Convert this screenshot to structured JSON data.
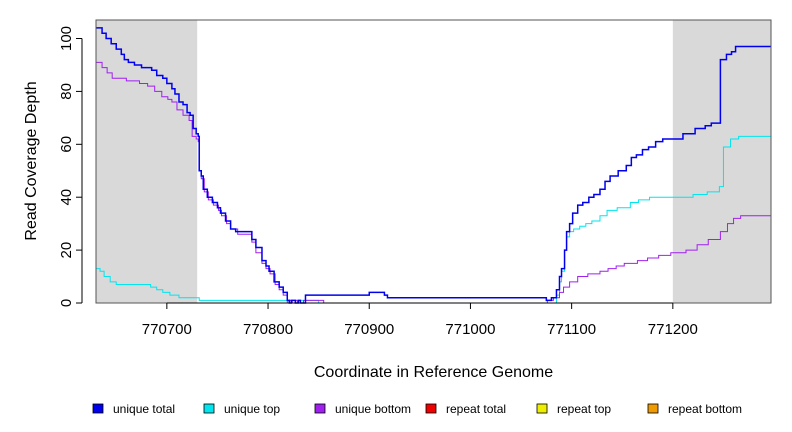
{
  "chart_data": {
    "type": "line",
    "style": "step",
    "title": "",
    "xlabel": "Coordinate in Reference Genome",
    "ylabel": "Read Coverage Depth",
    "xlim": [
      770630,
      771297
    ],
    "ylim": [
      0,
      107
    ],
    "x_ticks": [
      770700,
      770800,
      770900,
      771000,
      771100,
      771200
    ],
    "y_ticks": [
      0,
      20,
      40,
      60,
      80,
      100
    ],
    "grid": false,
    "legend_position": "bottom",
    "shaded_regions": [
      {
        "x0": 770630,
        "x1": 770730,
        "color": "#d9d9d9"
      },
      {
        "x0": 771200,
        "x1": 771297,
        "color": "#d9d9d9"
      }
    ],
    "series": [
      {
        "name": "unique total",
        "color": "#0000ee",
        "points": [
          [
            770630,
            104
          ],
          [
            770636,
            102
          ],
          [
            770640,
            100
          ],
          [
            770645,
            98
          ],
          [
            770650,
            96
          ],
          [
            770655,
            94
          ],
          [
            770658,
            92
          ],
          [
            770662,
            91
          ],
          [
            770668,
            90
          ],
          [
            770675,
            89
          ],
          [
            770685,
            88
          ],
          [
            770690,
            86
          ],
          [
            770696,
            85
          ],
          [
            770700,
            83
          ],
          [
            770705,
            81
          ],
          [
            770708,
            79
          ],
          [
            770712,
            76
          ],
          [
            770716,
            75
          ],
          [
            770720,
            72
          ],
          [
            770723,
            71
          ],
          [
            770726,
            66
          ],
          [
            770729,
            64
          ],
          [
            770731,
            63
          ],
          [
            770732,
            50
          ],
          [
            770734,
            48
          ],
          [
            770736,
            43
          ],
          [
            770740,
            40
          ],
          [
            770745,
            38
          ],
          [
            770750,
            36
          ],
          [
            770753,
            34
          ],
          [
            770758,
            31
          ],
          [
            770763,
            28
          ],
          [
            770768,
            27
          ],
          [
            770780,
            27
          ],
          [
            770784,
            24
          ],
          [
            770788,
            21
          ],
          [
            770794,
            16
          ],
          [
            770798,
            14
          ],
          [
            770801,
            12
          ],
          [
            770806,
            8
          ],
          [
            770811,
            6
          ],
          [
            770815,
            4
          ],
          [
            770819,
            1
          ],
          [
            770821,
            0
          ],
          [
            770823,
            1
          ],
          [
            770827,
            0
          ],
          [
            770830,
            1
          ],
          [
            770832,
            0
          ],
          [
            770837,
            3
          ],
          [
            770900,
            4
          ],
          [
            770915,
            3
          ],
          [
            770918,
            2
          ],
          [
            771075,
            1
          ],
          [
            771080,
            2
          ],
          [
            771085,
            5
          ],
          [
            771088,
            10
          ],
          [
            771090,
            13
          ],
          [
            771093,
            20
          ],
          [
            771095,
            27
          ],
          [
            771098,
            30
          ],
          [
            771101,
            34
          ],
          [
            771106,
            37
          ],
          [
            771111,
            38
          ],
          [
            771117,
            40
          ],
          [
            771122,
            41
          ],
          [
            771128,
            43
          ],
          [
            771133,
            46
          ],
          [
            771138,
            48
          ],
          [
            771146,
            50
          ],
          [
            771154,
            52
          ],
          [
            771159,
            55
          ],
          [
            771164,
            56
          ],
          [
            771170,
            58
          ],
          [
            771176,
            59
          ],
          [
            771183,
            61
          ],
          [
            771190,
            62
          ],
          [
            771200,
            62
          ],
          [
            771210,
            64
          ],
          [
            771222,
            66
          ],
          [
            771232,
            67
          ],
          [
            771238,
            68
          ],
          [
            771247,
            92
          ],
          [
            771253,
            94
          ],
          [
            771258,
            95
          ],
          [
            771262,
            97
          ],
          [
            771297,
            97
          ]
        ]
      },
      {
        "name": "unique top",
        "color": "#00e5ee",
        "points": [
          [
            770630,
            13
          ],
          [
            770634,
            12
          ],
          [
            770638,
            10
          ],
          [
            770644,
            8
          ],
          [
            770650,
            7
          ],
          [
            770680,
            7
          ],
          [
            770684,
            6
          ],
          [
            770690,
            5
          ],
          [
            770696,
            4
          ],
          [
            770703,
            3
          ],
          [
            770712,
            2
          ],
          [
            770730,
            2
          ],
          [
            770732,
            1
          ],
          [
            770840,
            1
          ],
          [
            770850,
            0
          ],
          [
            771080,
            0
          ],
          [
            771085,
            3
          ],
          [
            771088,
            8
          ],
          [
            771090,
            12
          ],
          [
            771093,
            20
          ],
          [
            771095,
            25
          ],
          [
            771098,
            27
          ],
          [
            771102,
            28
          ],
          [
            771108,
            29
          ],
          [
            771114,
            30
          ],
          [
            771120,
            31
          ],
          [
            771128,
            33
          ],
          [
            771135,
            35
          ],
          [
            771145,
            36
          ],
          [
            771158,
            38
          ],
          [
            771166,
            39
          ],
          [
            771177,
            40
          ],
          [
            771200,
            40
          ],
          [
            771220,
            41
          ],
          [
            771234,
            42
          ],
          [
            771246,
            44
          ],
          [
            771250,
            59
          ],
          [
            771257,
            62
          ],
          [
            771265,
            63
          ],
          [
            771297,
            63
          ]
        ]
      },
      {
        "name": "unique bottom",
        "color": "#a020f0",
        "points": [
          [
            770630,
            91
          ],
          [
            770636,
            89
          ],
          [
            770641,
            87
          ],
          [
            770646,
            85
          ],
          [
            770660,
            84
          ],
          [
            770673,
            83
          ],
          [
            770681,
            82
          ],
          [
            770688,
            80
          ],
          [
            770695,
            78
          ],
          [
            770701,
            77
          ],
          [
            770705,
            76
          ],
          [
            770710,
            73
          ],
          [
            770716,
            71
          ],
          [
            770722,
            69
          ],
          [
            770725,
            63
          ],
          [
            770729,
            62
          ],
          [
            770731,
            61
          ],
          [
            770732,
            50
          ],
          [
            770734,
            47
          ],
          [
            770737,
            42
          ],
          [
            770741,
            39
          ],
          [
            770746,
            37
          ],
          [
            770751,
            35
          ],
          [
            770754,
            33
          ],
          [
            770759,
            30
          ],
          [
            770763,
            28
          ],
          [
            770770,
            26
          ],
          [
            770780,
            26
          ],
          [
            770784,
            23
          ],
          [
            770788,
            19
          ],
          [
            770794,
            15
          ],
          [
            770798,
            13
          ],
          [
            770802,
            11
          ],
          [
            770807,
            7
          ],
          [
            770811,
            5
          ],
          [
            770815,
            3
          ],
          [
            770819,
            0
          ],
          [
            770821,
            1
          ],
          [
            770824,
            0
          ],
          [
            770827,
            1
          ],
          [
            770829,
            0
          ],
          [
            770835,
            1
          ],
          [
            770850,
            1
          ],
          [
            770855,
            0
          ],
          [
            771065,
            0
          ],
          [
            771070,
            0
          ],
          [
            771076,
            1
          ],
          [
            771082,
            2
          ],
          [
            771088,
            4
          ],
          [
            771092,
            6
          ],
          [
            771098,
            8
          ],
          [
            771106,
            10
          ],
          [
            771116,
            11
          ],
          [
            771128,
            12
          ],
          [
            771136,
            13
          ],
          [
            771144,
            14
          ],
          [
            771152,
            15
          ],
          [
            771165,
            16
          ],
          [
            771175,
            17
          ],
          [
            771186,
            18
          ],
          [
            771198,
            19
          ],
          [
            771213,
            20
          ],
          [
            771224,
            22
          ],
          [
            771235,
            24
          ],
          [
            771247,
            27
          ],
          [
            771254,
            30
          ],
          [
            771260,
            32
          ],
          [
            771267,
            33
          ],
          [
            771297,
            33
          ]
        ]
      },
      {
        "name": "repeat total",
        "color": "#ee0000",
        "points": [
          [
            770630,
            0
          ],
          [
            771297,
            0
          ]
        ]
      },
      {
        "name": "repeat top",
        "color": "#eeee00",
        "points": [
          [
            770630,
            0
          ],
          [
            771297,
            0
          ]
        ]
      },
      {
        "name": "repeat bottom",
        "color": "#ee9a00",
        "points": [
          [
            770630,
            0
          ],
          [
            771297,
            0
          ]
        ]
      }
    ]
  }
}
